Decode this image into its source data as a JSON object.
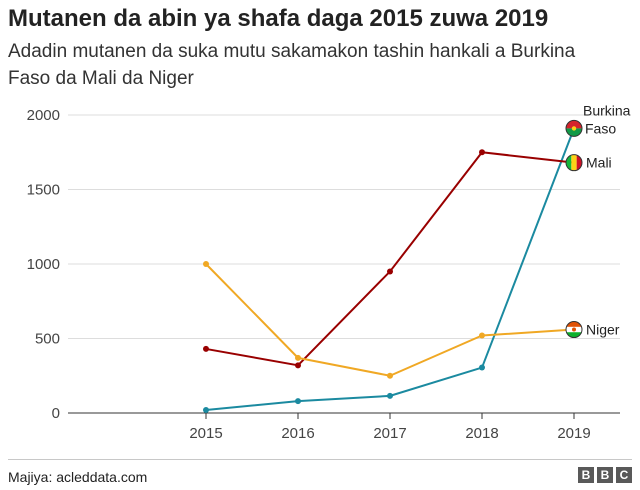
{
  "header": {
    "title": "Mutanen da abin ya shafa daga 2015 zuwa 2019",
    "subtitle": "Adadin mutanen da suka mutu sakamakon tashin hankali a Burkina Faso da Mali da Niger"
  },
  "footer": {
    "source": "Majiya: acleddata.com",
    "logo_letters": [
      "B",
      "B",
      "C"
    ]
  },
  "chart_data": {
    "type": "line",
    "x": [
      2015,
      2016,
      2017,
      2018,
      2019
    ],
    "xlim": [
      2013.5,
      2019.5
    ],
    "ylim": [
      0,
      2000
    ],
    "yticks": [
      0,
      500,
      1000,
      1500,
      2000
    ],
    "grid": true,
    "legend": "inline labels at line ends with country flags",
    "series": [
      {
        "name": "Burkina Faso",
        "label_lines": [
          "Burkina",
          "Faso"
        ],
        "color": "#1b8aa0",
        "flag_icon": "burkina-faso-flag-icon",
        "values": [
          20,
          80,
          115,
          305,
          1910
        ]
      },
      {
        "name": "Mali",
        "label_lines": [
          "Mali"
        ],
        "color": "#990000",
        "flag_icon": "mali-flag-icon",
        "values": [
          430,
          320,
          950,
          1750,
          1680
        ]
      },
      {
        "name": "Niger",
        "label_lines": [
          "Niger"
        ],
        "color": "#f0a824",
        "flag_icon": "niger-flag-icon",
        "values": [
          1000,
          370,
          250,
          520,
          560
        ]
      }
    ]
  }
}
